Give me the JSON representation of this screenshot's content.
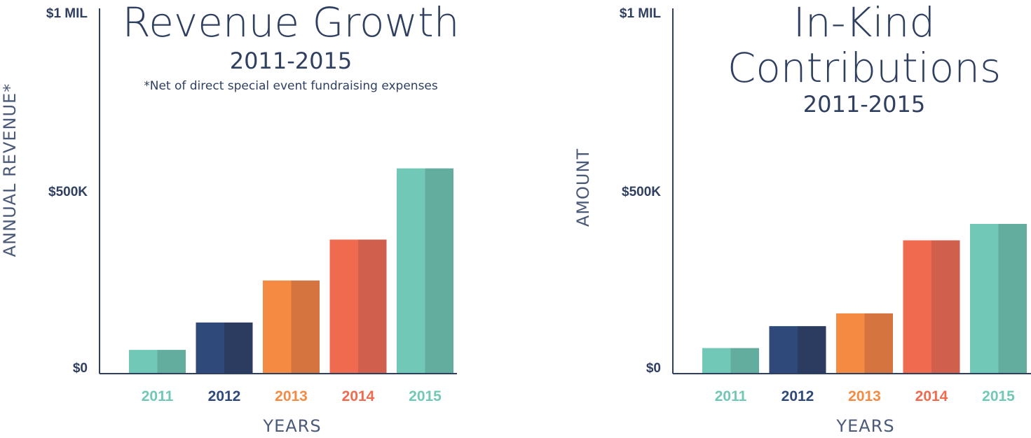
{
  "colors": {
    "axis": "#2f3f5f",
    "year_colors": [
      "#72c8b6",
      "#2f4a7a",
      "#f58a43",
      "#f06a4f",
      "#72c8b6"
    ],
    "year_shades": [
      "#63ad9f",
      "#2b3c60",
      "#d5743f",
      "#d05f4d",
      "#63ad9f"
    ]
  },
  "chart_data": [
    {
      "type": "bar",
      "title": "Revenue Growth",
      "subtitle": "2011-2015",
      "note": "*Net of direct special event fundraising expenses",
      "xlabel": "YEARS",
      "ylabel": "ANNUAL REVENUE*",
      "categories": [
        "2011",
        "2012",
        "2013",
        "2014",
        "2015"
      ],
      "values": [
        65000,
        140000,
        255000,
        367000,
        562000
      ],
      "ylim": [
        0,
        1000000
      ],
      "yticks": [
        {
          "value": 0,
          "label": "$0"
        },
        {
          "value": 500000,
          "label": "$500K"
        },
        {
          "value": 1000000,
          "label": "$1 MIL"
        }
      ],
      "grid": false,
      "legend": "none"
    },
    {
      "type": "bar",
      "title": "In-Kind Contributions",
      "subtitle": "2011-2015",
      "xlabel": "YEARS",
      "ylabel": "AMOUNT",
      "categories": [
        "2011",
        "2012",
        "2013",
        "2014",
        "2015"
      ],
      "values": [
        70000,
        130000,
        165000,
        365000,
        410000
      ],
      "ylim": [
        0,
        1000000
      ],
      "yticks": [
        {
          "value": 0,
          "label": "$0"
        },
        {
          "value": 500000,
          "label": "$500K"
        },
        {
          "value": 1000000,
          "label": "$1 MIL"
        }
      ],
      "grid": false,
      "legend": "none"
    }
  ]
}
